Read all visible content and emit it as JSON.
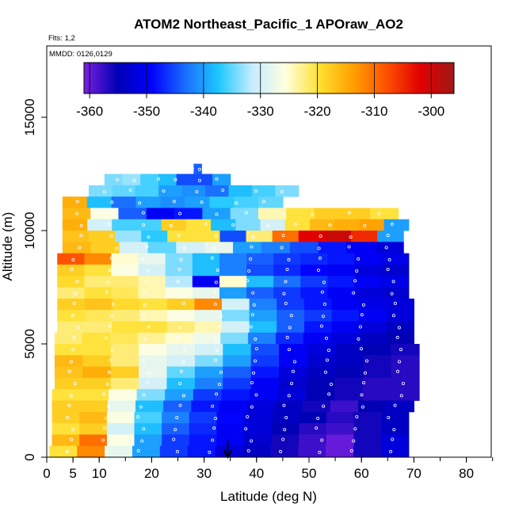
{
  "chart_data": {
    "type": "heatmap",
    "title": "ATOM2 Northeast_Pacific_1 APOraw_AO2",
    "subtitle_flights": "Flts: 1,2",
    "subtitle_dates": "MMDD: 0126,0129",
    "xlabel": "Latitude (deg N)",
    "ylabel": "Altitude (m)",
    "xlim": [
      0,
      85
    ],
    "ylim": [
      0,
      18000
    ],
    "x_ticks": [
      0,
      5,
      10,
      20,
      30,
      40,
      50,
      60,
      70,
      80
    ],
    "y_ticks": [
      0,
      5000,
      10000,
      15000
    ],
    "colorbar": {
      "min": -361,
      "max": -296,
      "ticks": [
        -360,
        -350,
        -340,
        -330,
        -320,
        -310,
        -300
      ],
      "colors": [
        "#7a20e0",
        "#0000b4",
        "#0000ff",
        "#1a6cff",
        "#1ec8ff",
        "#c6ecff",
        "#ffffe0",
        "#ffe030",
        "#ffa000",
        "#ff5000",
        "#e00000",
        "#a01818"
      ],
      "position": "top inside plot"
    },
    "arrow_marker_latitude": 34.5,
    "layers": [
      {
        "alt": 12700,
        "x0": 28,
        "x1": 29.5,
        "values": [
          -344,
          -344
        ]
      },
      {
        "alt": 12250,
        "x0": 11,
        "x1": 35,
        "values": [
          -334,
          -333,
          -336,
          -338,
          -345,
          -345,
          -340
        ]
      },
      {
        "alt": 11750,
        "x0": 8,
        "x1": 48,
        "values": [
          -334,
          -335,
          -336,
          -340,
          -341,
          -343,
          -338,
          -336,
          -334
        ]
      },
      {
        "alt": 11250,
        "x0": 3,
        "x1": 45,
        "values": [
          -315,
          -338,
          -343,
          -340,
          -341,
          -340,
          -337,
          -336,
          -335
        ]
      },
      {
        "alt": 10750,
        "x0": 3,
        "x1": 67,
        "values": [
          -316,
          -326,
          -344,
          -350,
          -348,
          -340,
          -334,
          -324,
          -320,
          -318,
          -318,
          -320
        ]
      },
      {
        "alt": 10250,
        "x0": 3,
        "x1": 69,
        "values": [
          -315,
          -330,
          -336,
          -336,
          -318,
          -320,
          -338,
          -334,
          -330,
          -320,
          -316,
          -315,
          -314,
          -340
        ]
      },
      {
        "alt": 9750,
        "x0": 3,
        "x1": 68,
        "values": [
          -317,
          -318,
          -333,
          -337,
          -320,
          -320,
          -345,
          -322,
          -310,
          -302,
          -300,
          -305,
          -340
        ]
      },
      {
        "alt": 9250,
        "x0": 3,
        "x1": 68,
        "values": [
          -316,
          -318,
          -330,
          -335,
          -330,
          -328,
          -340,
          -342,
          -345,
          -348,
          -350,
          -352
        ]
      },
      {
        "alt": 8750,
        "x0": 2,
        "x1": 69,
        "values": [
          -308,
          -312,
          -325,
          -328,
          -334,
          -338,
          -342,
          -344,
          -346,
          -347,
          -348,
          -350,
          -351
        ]
      },
      {
        "alt": 8250,
        "x0": 2,
        "x1": 69,
        "values": [
          -318,
          -320,
          -326,
          -330,
          -334,
          -338,
          -342,
          -345,
          -347,
          -349,
          -350,
          -352,
          -353
        ]
      },
      {
        "alt": 7750,
        "x0": 2,
        "x1": 69,
        "values": [
          -319,
          -322,
          -322,
          -324,
          -332,
          -350,
          -325,
          -338,
          -343,
          -346,
          -348,
          -350,
          -351
        ]
      },
      {
        "alt": 7250,
        "x0": 2,
        "x1": 69,
        "values": [
          -322,
          -320,
          -321,
          -324,
          -326,
          -328,
          -340,
          -344,
          -346,
          -348,
          -350,
          -352,
          -353
        ]
      },
      {
        "alt": 6750,
        "x0": 2,
        "x1": 70,
        "values": [
          -318,
          -317,
          -319,
          -320,
          -318,
          -312,
          -330,
          -342,
          -346,
          -348,
          -350,
          -351,
          -352
        ]
      },
      {
        "alt": 6250,
        "x0": 2,
        "x1": 70,
        "values": [
          -320,
          -321,
          -322,
          -324,
          -326,
          -328,
          -334,
          -340,
          -344,
          -346,
          -348,
          -350,
          -352
        ]
      },
      {
        "alt": 5750,
        "x0": 2,
        "x1": 70,
        "values": [
          -322,
          -322,
          -320,
          -320,
          -322,
          -324,
          -330,
          -338,
          -344,
          -348,
          -350,
          -352,
          -354
        ]
      },
      {
        "alt": 5250,
        "x0": 1.5,
        "x1": 70,
        "values": [
          -322,
          -320,
          -321,
          -323,
          -325,
          -327,
          -334,
          -342,
          -347,
          -350,
          -352,
          -354,
          -355
        ]
      },
      {
        "alt": 4750,
        "x0": 1.5,
        "x1": 71,
        "values": [
          -320,
          -320,
          -322,
          -326,
          -328,
          -330,
          -338,
          -345,
          -350,
          -352,
          -354,
          -355,
          -356
        ]
      },
      {
        "alt": 4250,
        "x0": 1.5,
        "x1": 71,
        "values": [
          -316,
          -318,
          -322,
          -328,
          -330,
          -334,
          -340,
          -346,
          -350,
          -353,
          -354,
          -356,
          -357
        ]
      },
      {
        "alt": 3750,
        "x0": 1.5,
        "x1": 71,
        "values": [
          -317,
          -315,
          -318,
          -328,
          -335,
          -340,
          -344,
          -348,
          -352,
          -354,
          -355,
          -356,
          -357
        ]
      },
      {
        "alt": 3250,
        "x0": 1.5,
        "x1": 71,
        "values": [
          -318,
          -318,
          -322,
          -330,
          -338,
          -342,
          -346,
          -350,
          -353,
          -355,
          -356,
          -357,
          -357
        ]
      },
      {
        "alt": 2750,
        "x0": 1,
        "x1": 71,
        "values": [
          -320,
          -320,
          -326,
          -334,
          -340,
          -346,
          -348,
          -350,
          -352,
          -355,
          -356,
          -357,
          -357
        ]
      },
      {
        "alt": 2250,
        "x0": 1,
        "x1": 70,
        "values": [
          -318,
          -318,
          -328,
          -338,
          -344,
          -348,
          -350,
          -352,
          -354,
          -356,
          -358,
          -355,
          -354
        ]
      },
      {
        "alt": 1750,
        "x0": 1,
        "x1": 69,
        "values": [
          -318,
          -316,
          -326,
          -336,
          -342,
          -346,
          -349,
          -352,
          -354,
          -355,
          -357,
          -356,
          -354
        ]
      },
      {
        "alt": 1250,
        "x0": 1,
        "x1": 69,
        "values": [
          -320,
          -318,
          -330,
          -338,
          -344,
          -347,
          -350,
          -352,
          -355,
          -357,
          -358,
          -356,
          -354
        ]
      },
      {
        "alt": 750,
        "x0": 1,
        "x1": 69,
        "values": [
          -316,
          -310,
          -326,
          -340,
          -346,
          -348,
          -350,
          -353,
          -356,
          -358,
          -360,
          -356,
          -352
        ]
      },
      {
        "alt": 250,
        "x0": 0.5,
        "x1": 69,
        "values": [
          -320,
          -312,
          -328,
          -340,
          -346,
          -348,
          -352,
          -354,
          -356,
          -358,
          -360,
          -356,
          -352
        ]
      }
    ]
  }
}
